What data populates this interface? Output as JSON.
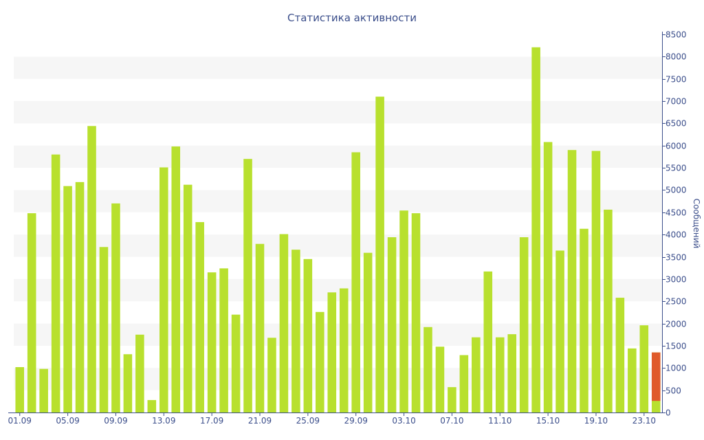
{
  "chart_data": {
    "type": "bar",
    "title": "Статистика активности",
    "ylabel": "Сообщений",
    "xlabel": "",
    "ylim": [
      0,
      8500
    ],
    "y_ticks": [
      0,
      500,
      1000,
      1500,
      2000,
      2500,
      3000,
      3500,
      4000,
      4500,
      5000,
      5500,
      6000,
      6500,
      7000,
      7500,
      8000,
      8500
    ],
    "y_axis_side": "right",
    "grid": "alternating horizontal bands",
    "x_tick_labels": [
      "01.09",
      "05.09",
      "09.09",
      "13.09",
      "17.09",
      "21.09",
      "25.09",
      "29.09",
      "03.10",
      "07.10",
      "11.10",
      "15.10",
      "19.10",
      "23.10"
    ],
    "x_tick_every": 4,
    "categories": [
      "01.09",
      "02.09",
      "03.09",
      "04.09",
      "05.09",
      "06.09",
      "07.09",
      "08.09",
      "09.09",
      "10.09",
      "11.09",
      "12.09",
      "13.09",
      "14.09",
      "15.09",
      "16.09",
      "17.09",
      "18.09",
      "19.09",
      "20.09",
      "21.09",
      "22.09",
      "23.09",
      "24.09",
      "25.09",
      "26.09",
      "27.09",
      "28.09",
      "29.09",
      "30.09",
      "01.10",
      "02.10",
      "03.10",
      "04.10",
      "05.10",
      "06.10",
      "07.10",
      "08.10",
      "09.10",
      "10.10",
      "11.10",
      "12.10",
      "13.10",
      "14.10",
      "15.10",
      "16.10",
      "17.10",
      "18.10",
      "19.10",
      "20.10",
      "21.10",
      "22.10",
      "23.10",
      "24.10"
    ],
    "values": [
      1020,
      4480,
      980,
      5800,
      5090,
      5180,
      6440,
      3720,
      4700,
      1310,
      1750,
      280,
      5510,
      5980,
      5120,
      4280,
      3150,
      3240,
      2200,
      5700,
      3790,
      1680,
      4010,
      3660,
      3450,
      2260,
      2700,
      2790,
      5850,
      3590,
      7100,
      3940,
      4540,
      4480,
      1920,
      1480,
      570,
      1290,
      1690,
      3170,
      1690,
      1760,
      3940,
      8210,
      6080,
      3640,
      5900,
      4130,
      5880,
      4560,
      2580,
      1440,
      1960,
      1350
    ],
    "highlight": {
      "index": 53,
      "partial_value": 260,
      "color": "#e05a2b"
    },
    "colors": {
      "bar": "#b8e02e",
      "band": "#f6f6f6",
      "axis": "#3a4d8a"
    }
  }
}
